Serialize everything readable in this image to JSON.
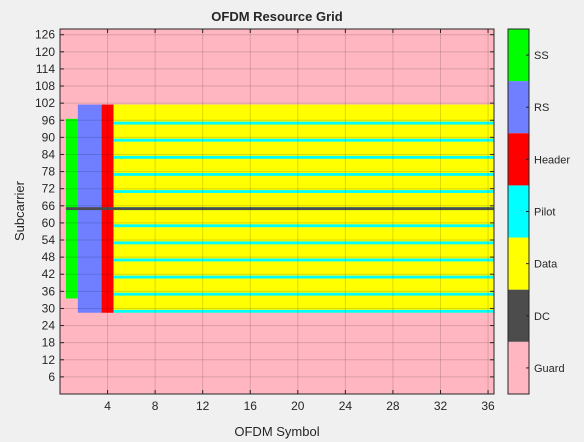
{
  "chart_data": {
    "type": "heatmap",
    "title": "OFDM Resource Grid",
    "xlabel": "OFDM Symbol",
    "ylabel": "Subcarrier",
    "xlim": [
      0,
      36.5
    ],
    "ylim": [
      0,
      128
    ],
    "xticks": [
      "4",
      "8",
      "12",
      "16",
      "20",
      "24",
      "28",
      "32",
      "36"
    ],
    "yticks": [
      "6",
      "12",
      "18",
      "24",
      "30",
      "36",
      "42",
      "48",
      "54",
      "60",
      "66",
      "72",
      "78",
      "84",
      "90",
      "96",
      "102",
      "108",
      "114",
      "120",
      "126"
    ],
    "grid": true,
    "colorbar": {
      "categories": [
        {
          "name": "SS",
          "color": "#00ff00"
        },
        {
          "name": "RS",
          "color": "#6f7fff"
        },
        {
          "name": "Header",
          "color": "#ff0000"
        },
        {
          "name": "Pilot",
          "color": "#00ffff"
        },
        {
          "name": "Data",
          "color": "#ffff00"
        },
        {
          "name": "DC",
          "color": "#4c4c4c"
        },
        {
          "name": "Guard",
          "color": "#ffb6c1"
        }
      ]
    },
    "cells": {
      "guard_background": {
        "symbols": [
          1,
          36
        ],
        "subcarriers": [
          1,
          128
        ],
        "type": "Guard"
      },
      "occupied_subcarriers": [
        29,
        101
      ],
      "dc_subcarrier": 65,
      "ss": {
        "symbol": 1,
        "subcarriers": [
          34,
          96
        ]
      },
      "rs": {
        "symbols": [
          2,
          3
        ],
        "subcarriers": [
          29,
          101
        ]
      },
      "header": {
        "symbol": 4,
        "subcarriers": [
          29,
          101
        ]
      },
      "data": {
        "symbols": [
          5,
          36
        ],
        "subcarriers": [
          29,
          101
        ]
      },
      "pilot_subcarriers": [
        29,
        35,
        41,
        47,
        53,
        59,
        65,
        71,
        77,
        83,
        89,
        95
      ]
    }
  }
}
